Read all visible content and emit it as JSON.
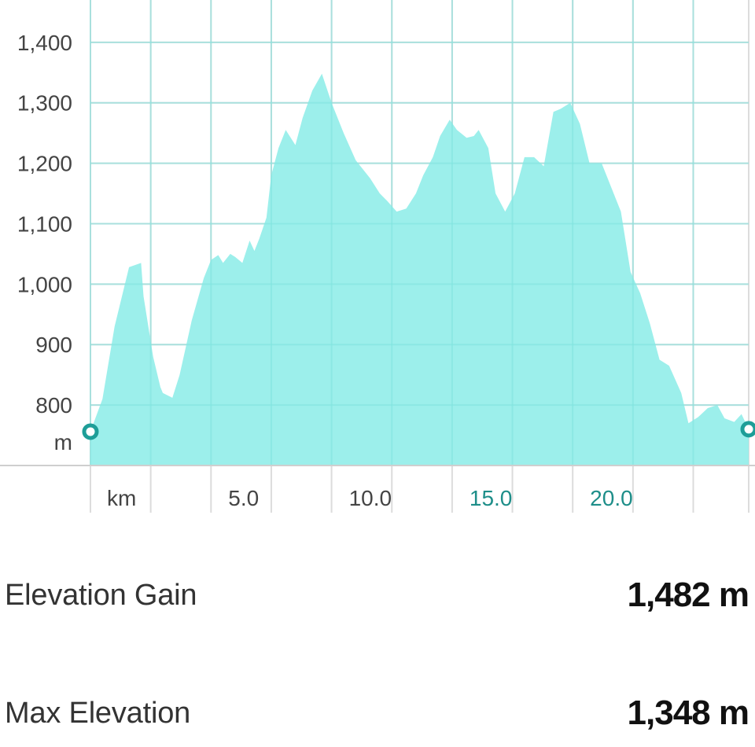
{
  "chart_data": {
    "type": "area",
    "x_unit": "km",
    "y_unit": "m",
    "xlim": [
      0,
      27.3
    ],
    "ylim": [
      700,
      1470
    ],
    "y_ticks": [
      800,
      900,
      1000,
      1100,
      1200,
      1300,
      1400
    ],
    "y_tick_labels": [
      "800",
      "900",
      "1,000",
      "1,100",
      "1,200",
      "1,300",
      "1,400"
    ],
    "x_ticks": [
      5,
      10,
      15,
      20
    ],
    "x_tick_labels": [
      "5.0",
      "10.0",
      "15.0",
      "20.0"
    ],
    "x_unit_label": "km",
    "y_unit_label": "m",
    "grid": true,
    "fill_color": "#97EEEA",
    "marker_color": "#1E9E98",
    "series": [
      {
        "x": [
          0,
          0.5,
          1.0,
          1.6,
          2.1,
          2.2,
          2.6,
          2.9,
          3.0,
          3.4,
          3.7,
          4.2,
          4.7,
          5.0,
          5.3,
          5.5,
          5.8,
          6.0,
          6.3,
          6.6,
          6.8,
          7.0,
          7.3,
          7.5,
          7.8,
          8.1,
          8.5,
          8.8,
          9.2,
          9.6,
          10.0,
          10.5,
          11.0,
          11.6,
          12.0,
          12.3,
          12.7,
          13.1,
          13.5,
          13.8,
          14.2,
          14.5,
          14.9,
          15.2,
          15.6,
          15.9,
          16.1,
          16.5,
          16.8,
          17.2,
          17.6,
          18.0,
          18.4,
          18.8,
          19.2,
          19.5,
          19.9,
          20.3,
          20.7,
          21.2,
          21.6,
          22.0,
          22.4,
          22.8,
          23.2,
          23.6,
          24.0,
          24.5,
          24.8,
          25.2,
          25.6,
          26.0,
          26.3,
          26.7,
          27.0,
          27.3
        ],
        "y": [
          756,
          810,
          930,
          1028,
          1035,
          980,
          880,
          830,
          820,
          812,
          850,
          940,
          1010,
          1040,
          1048,
          1035,
          1050,
          1045,
          1035,
          1072,
          1055,
          1075,
          1110,
          1180,
          1225,
          1255,
          1230,
          1275,
          1320,
          1348,
          1300,
          1250,
          1205,
          1175,
          1150,
          1138,
          1120,
          1125,
          1150,
          1180,
          1210,
          1245,
          1272,
          1255,
          1242,
          1245,
          1255,
          1225,
          1150,
          1120,
          1150,
          1210,
          1210,
          1195,
          1285,
          1290,
          1300,
          1265,
          1200,
          1200,
          1160,
          1120,
          1020,
          985,
          935,
          875,
          865,
          820,
          770,
          780,
          795,
          800,
          778,
          772,
          785,
          760
        ]
      }
    ]
  },
  "stats": {
    "elevation_gain": {
      "label": "Elevation Gain",
      "value": "1,482 m"
    },
    "max_elevation": {
      "label": "Max Elevation",
      "value": "1,348 m"
    }
  }
}
